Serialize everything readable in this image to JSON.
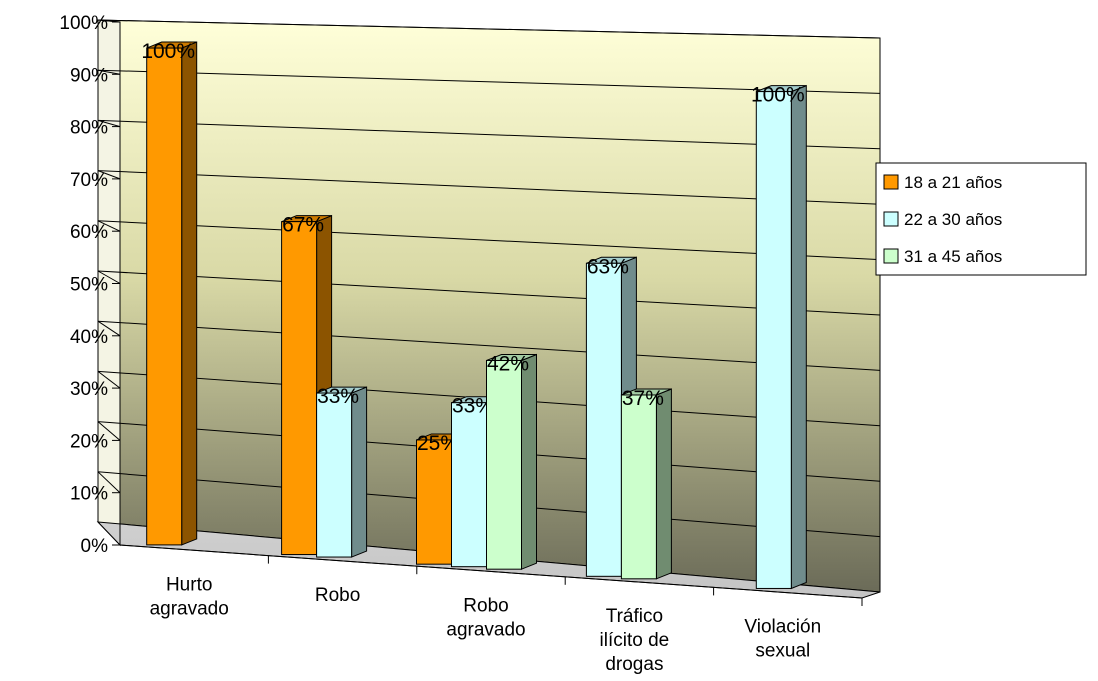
{
  "chart_data": {
    "type": "bar",
    "title": "",
    "xlabel": "",
    "ylabel": "",
    "ylim": [
      0,
      100
    ],
    "grid": true,
    "legend_position": "right",
    "y_ticks": [
      "0%",
      "10%",
      "20%",
      "30%",
      "40%",
      "50%",
      "60%",
      "70%",
      "80%",
      "90%",
      "100%"
    ],
    "categories": [
      [
        "Hurto",
        "agravado"
      ],
      [
        "Robo"
      ],
      [
        "Robo",
        "agravado"
      ],
      [
        "Tráfico",
        "ilícito de",
        "drogas"
      ],
      [
        "Violación",
        "sexual"
      ]
    ],
    "series": [
      {
        "name": "18 a 21 años",
        "color": "#FF9900",
        "values": [
          100,
          67,
          25,
          null,
          null
        ],
        "labels": [
          "100%",
          "67%",
          "25%",
          "",
          ""
        ]
      },
      {
        "name": "22 a 30 años",
        "color": "#CCFFFF",
        "values": [
          null,
          33,
          33,
          63,
          100
        ],
        "labels": [
          "",
          "33%",
          "33%",
          "63%",
          "100%"
        ]
      },
      {
        "name": "31 a 45 años",
        "color": "#CCFFCC",
        "values": [
          null,
          null,
          42,
          37,
          null
        ],
        "labels": [
          "",
          "",
          "42%",
          "37%",
          ""
        ]
      }
    ]
  },
  "legend_title": ""
}
